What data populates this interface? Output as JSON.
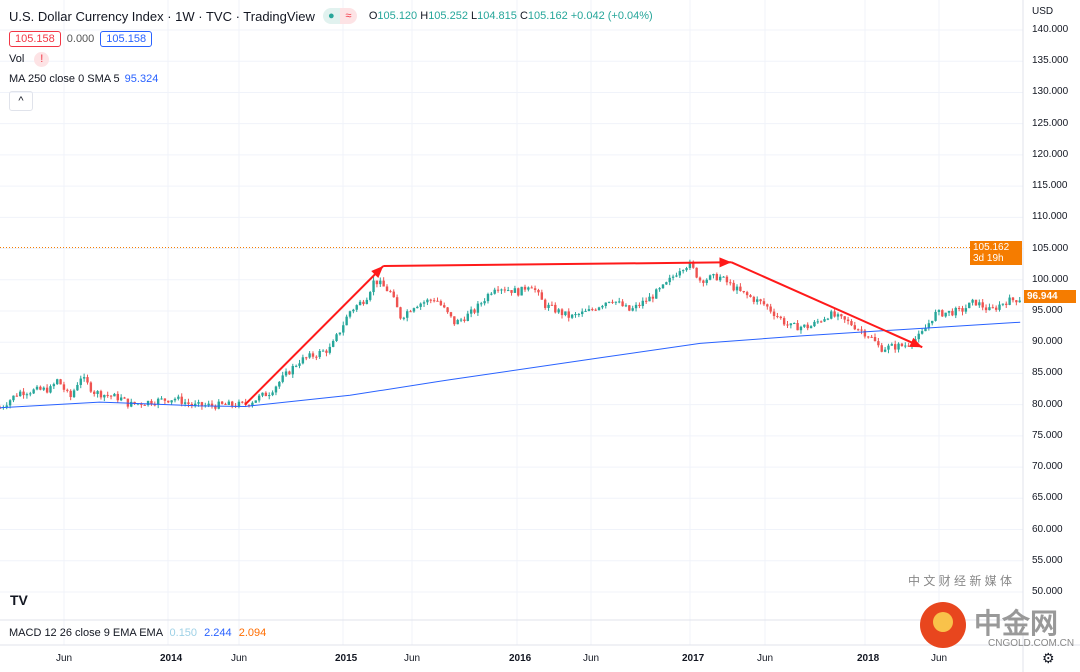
{
  "header": {
    "title": "U.S. Dollar Currency Index · 1W · TVC · TradingView",
    "status_icons": [
      "market-open-dot-icon",
      "delayed-data-icon"
    ],
    "ohlc": {
      "o_label": "O",
      "o": "105.120",
      "h_label": "H",
      "h": "105.252",
      "l_label": "L",
      "l": "104.815",
      "c_label": "C",
      "c": "105.162",
      "change": "+0.042 (+0.04%)"
    },
    "bid": "105.158",
    "spread": "0.000",
    "ask": "105.158"
  },
  "indicators": {
    "vol_label": "Vol",
    "vol_warning": "!",
    "ma_label": "MA 250 close 0 SMA 5",
    "ma_value": "95.324",
    "collapse_icon": "^"
  },
  "macd": {
    "label": "MACD 12 26 close 9 EMA EMA",
    "v1": "0.150",
    "v2": "2.244",
    "v3": "2.094"
  },
  "price_axis": {
    "currency": "USD",
    "ticks": [
      "140.000",
      "135.000",
      "130.000",
      "125.000",
      "120.000",
      "115.000",
      "110.000",
      "105.000",
      "100.000",
      "95.000",
      "90.000",
      "85.000",
      "80.000",
      "75.000",
      "70.000",
      "65.000",
      "60.000",
      "55.000",
      "50.000"
    ],
    "last_price": "105.162",
    "countdown": "3d 19h",
    "visible_last": "96.944"
  },
  "time_axis": {
    "ticks": [
      "Jun",
      "2014",
      "Jun",
      "2015",
      "Jun",
      "2016",
      "Jun",
      "2017",
      "Jun",
      "2018",
      "Jun"
    ]
  },
  "watermark": {
    "brand": "中金网",
    "domain": "CNGOLD.COM.CN",
    "tagline": "中 文 财 经 新 媒 体"
  },
  "colors": {
    "up": "#26a69a",
    "down": "#ef5350",
    "ma": "#2962ff",
    "arrow": "#ff1a1a",
    "badge": "#f57c00"
  },
  "chart_data": {
    "type": "candlestick",
    "ylim": [
      50,
      140
    ],
    "xlim": [
      2013.04,
      2018.9
    ],
    "close_path": [
      [
        2013.04,
        79.5
      ],
      [
        2013.15,
        82
      ],
      [
        2013.33,
        82.5
      ],
      [
        2013.37,
        84
      ],
      [
        2013.44,
        81
      ],
      [
        2013.5,
        84.5
      ],
      [
        2013.58,
        82
      ],
      [
        2013.73,
        81
      ],
      [
        2013.78,
        80
      ],
      [
        2013.9,
        80.5
      ],
      [
        2014.04,
        81
      ],
      [
        2014.15,
        79.8
      ],
      [
        2014.44,
        80
      ],
      [
        2014.58,
        82
      ],
      [
        2014.75,
        87
      ],
      [
        2014.93,
        89
      ],
      [
        2015.04,
        95
      ],
      [
        2015.13,
        97
      ],
      [
        2015.18,
        100
      ],
      [
        2015.27,
        98
      ],
      [
        2015.33,
        94
      ],
      [
        2015.41,
        96
      ],
      [
        2015.53,
        97
      ],
      [
        2015.64,
        93
      ],
      [
        2015.75,
        95
      ],
      [
        2015.87,
        99
      ],
      [
        2016.01,
        98
      ],
      [
        2016.07,
        99.5
      ],
      [
        2016.15,
        96
      ],
      [
        2016.3,
        94
      ],
      [
        2016.41,
        95
      ],
      [
        2016.53,
        97
      ],
      [
        2016.64,
        95
      ],
      [
        2016.75,
        97
      ],
      [
        2016.84,
        99
      ],
      [
        2016.93,
        102
      ],
      [
        2016.98,
        102.5
      ],
      [
        2017.04,
        100
      ],
      [
        2017.15,
        100.5
      ],
      [
        2017.27,
        98
      ],
      [
        2017.41,
        96
      ],
      [
        2017.55,
        92.5
      ],
      [
        2017.67,
        92.5
      ],
      [
        2017.78,
        94.5
      ],
      [
        2017.9,
        93
      ],
      [
        2018.01,
        91
      ],
      [
        2018.07,
        89
      ],
      [
        2018.21,
        89.5
      ],
      [
        2018.3,
        91
      ],
      [
        2018.38,
        94.5
      ],
      [
        2018.53,
        95
      ],
      [
        2018.61,
        96.5
      ],
      [
        2018.7,
        95
      ],
      [
        2018.78,
        96.5
      ],
      [
        2018.87,
        97
      ]
    ],
    "ma_path": [
      [
        2013.04,
        79.5
      ],
      [
        2013.61,
        80.4
      ],
      [
        2014.18,
        79.8
      ],
      [
        2014.44,
        79.7
      ],
      [
        2015.04,
        81.5
      ],
      [
        2015.61,
        84
      ],
      [
        2016.47,
        87.5
      ],
      [
        2017.04,
        89.8
      ],
      [
        2017.61,
        91
      ],
      [
        2018.18,
        92
      ],
      [
        2018.87,
        93.2
      ]
    ],
    "arrows": [
      [
        [
          2014.44,
          80
        ],
        [
          2015.23,
          102.2
        ]
      ],
      [
        [
          2015.23,
          102.2
        ],
        [
          2017.22,
          102.8
        ]
      ],
      [
        [
          2017.22,
          102.8
        ],
        [
          2018.31,
          89.2
        ]
      ]
    ]
  }
}
